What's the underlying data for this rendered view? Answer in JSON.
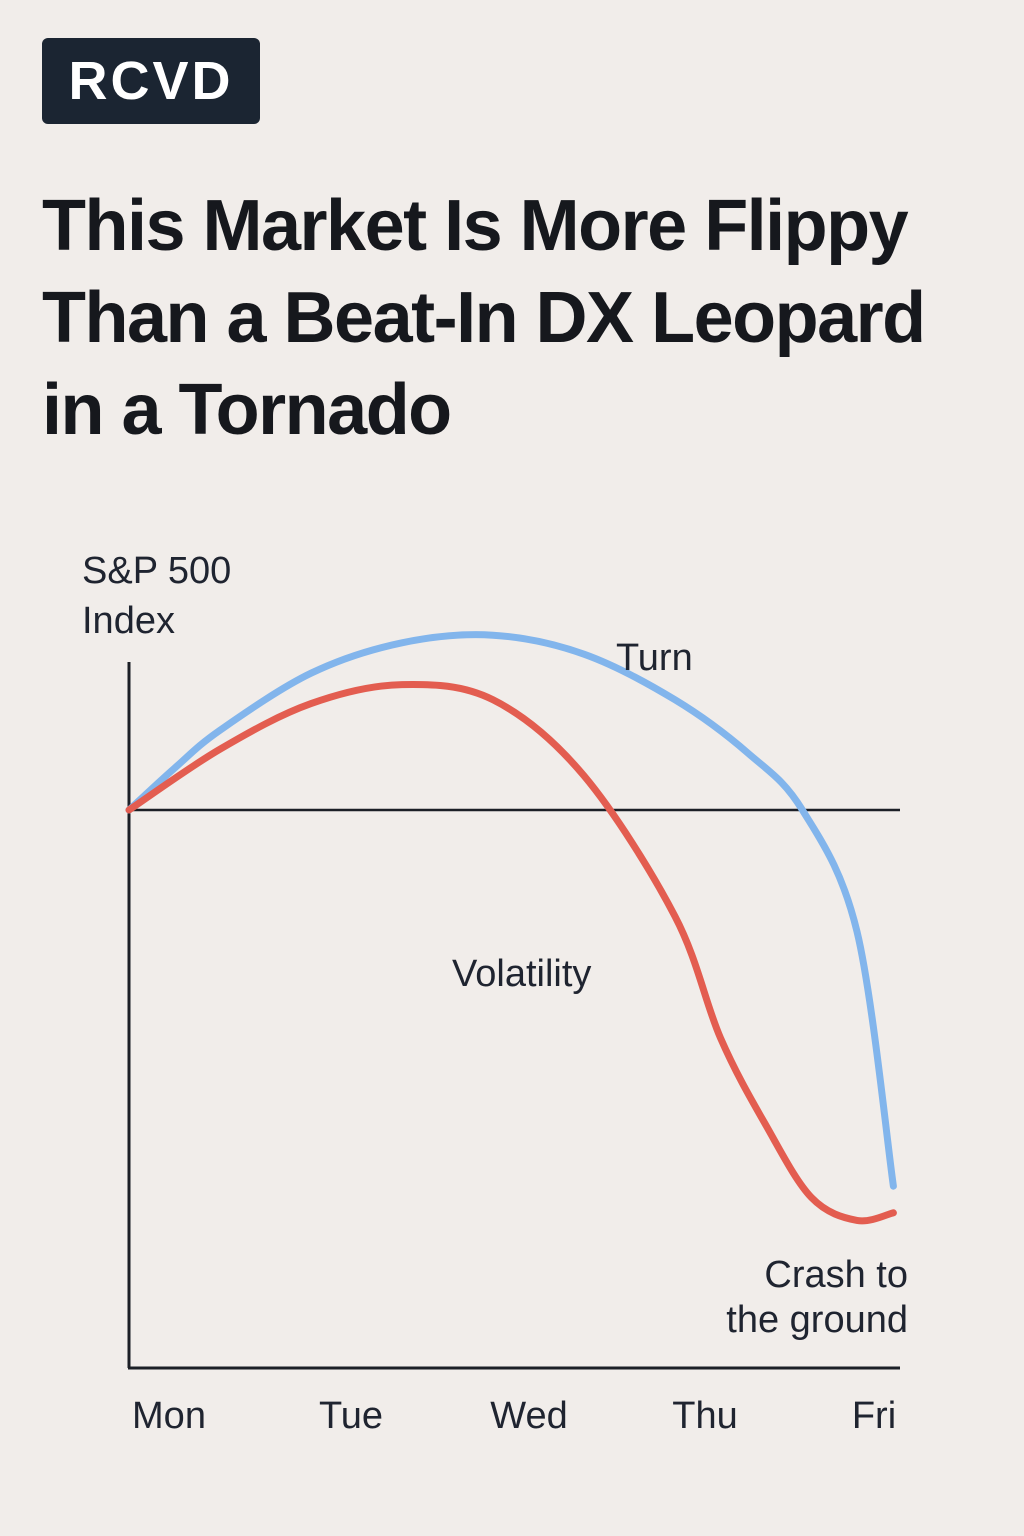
{
  "badge": {
    "label": "RCVD"
  },
  "headline": {
    "lines": [
      "This Market Is More Flippy",
      "Than a Beat-In DX Leopard",
      "in a Tornado"
    ]
  },
  "chart_data": {
    "type": "line",
    "categories": [
      "Mon",
      "Tue",
      "Wed",
      "Thu",
      "Fri"
    ],
    "ylabel": [
      "S&P 500",
      "Index"
    ],
    "xlabel": "",
    "title": "",
    "grid": false,
    "baseline": 0,
    "ylim": [
      -10,
      5
    ],
    "series": [
      {
        "name": "Turn",
        "color": "#82b5ec",
        "x": [
          0,
          0.25,
          0.5,
          1.0,
          1.5,
          2.0,
          2.5,
          3.0,
          3.4,
          3.7,
          4.0,
          4.2
        ],
        "values": [
          0,
          1.1,
          2.1,
          3.6,
          4.4,
          4.6,
          4.1,
          2.9,
          1.5,
          0,
          -3.2,
          -9.9
        ]
      },
      {
        "name": "Volatility",
        "color": "#e35d50",
        "x": [
          0,
          0.5,
          1.0,
          1.5,
          2.0,
          2.5,
          3.0,
          3.25,
          3.5,
          3.75,
          4.0,
          4.2
        ],
        "values": [
          0,
          1.6,
          2.8,
          3.3,
          2.9,
          0.9,
          -2.8,
          -6.0,
          -8.3,
          -10.2,
          -10.8,
          -10.6
        ]
      }
    ],
    "annotations": [
      {
        "text": "Turn",
        "series": "Turn"
      },
      {
        "text": "Volatility",
        "series": "Volatility"
      },
      {
        "text": [
          "Crash to",
          "the ground"
        ],
        "series": "Volatility"
      }
    ]
  }
}
